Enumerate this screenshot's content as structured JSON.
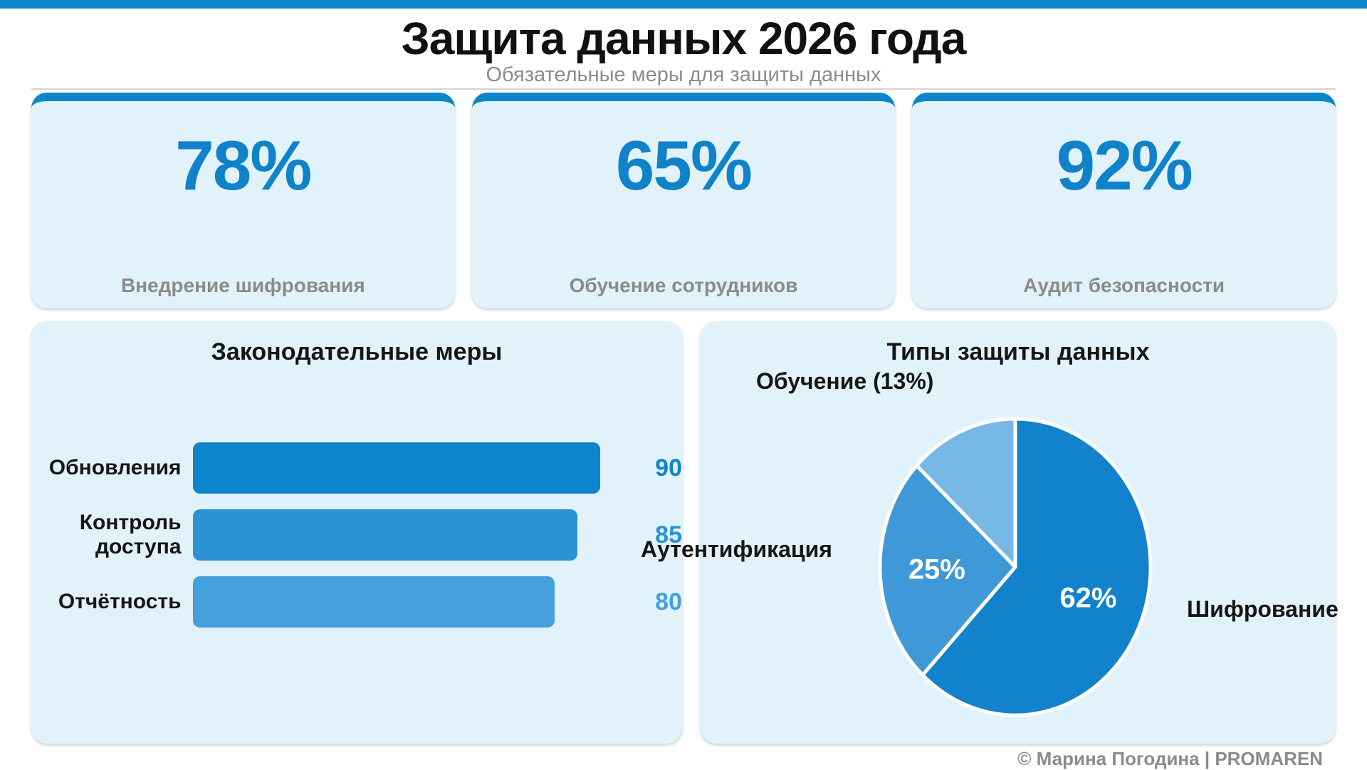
{
  "page": {
    "title": "Защита данных 2026 года",
    "subtitle": "Обязательные меры для защиты данных",
    "footer": "© Марина Погодина | PROMAREN"
  },
  "colors": {
    "accent": "#0c86cb",
    "card_bg": "#e1f2fb",
    "kpi_number": "#0f82c9",
    "muted_text": "#8b8b8b",
    "dark_text": "#161616",
    "bar_colors": [
      "#0d85cd",
      "#2b92d4",
      "#45a0db"
    ],
    "pie_colors": [
      "#1182cb",
      "#3f99d8",
      "#77b9e6"
    ],
    "pie_stroke": "#ffffff"
  },
  "kpi_cards": [
    {
      "value": "78%",
      "label": "Внедрение шифрования"
    },
    {
      "value": "65%",
      "label": "Обучение сотрудников"
    },
    {
      "value": "92%",
      "label": "Аудит безопасности"
    }
  ],
  "chart_data": [
    {
      "type": "bar",
      "orientation": "horizontal",
      "title": "Законодательные меры",
      "categories": [
        "Обновления",
        "Контроль доступа",
        "Отчётность"
      ],
      "values": [
        90,
        85,
        80
      ],
      "xlim": [
        0,
        100
      ],
      "grid": false,
      "value_labels": "right-of-bar"
    },
    {
      "type": "pie",
      "title": "Типы защиты данных",
      "labels": [
        "Шифрование",
        "Аутентификация",
        "Обучение"
      ],
      "values": [
        62,
        25,
        13
      ],
      "start_angle": "top",
      "direction": "clockwise",
      "inside_pct_labels": [
        "62%",
        "25%",
        null
      ],
      "outside_labels": [
        "Шифрование",
        "Аутентификация",
        "Обучение (13%)"
      ],
      "legend_position": "none"
    }
  ]
}
